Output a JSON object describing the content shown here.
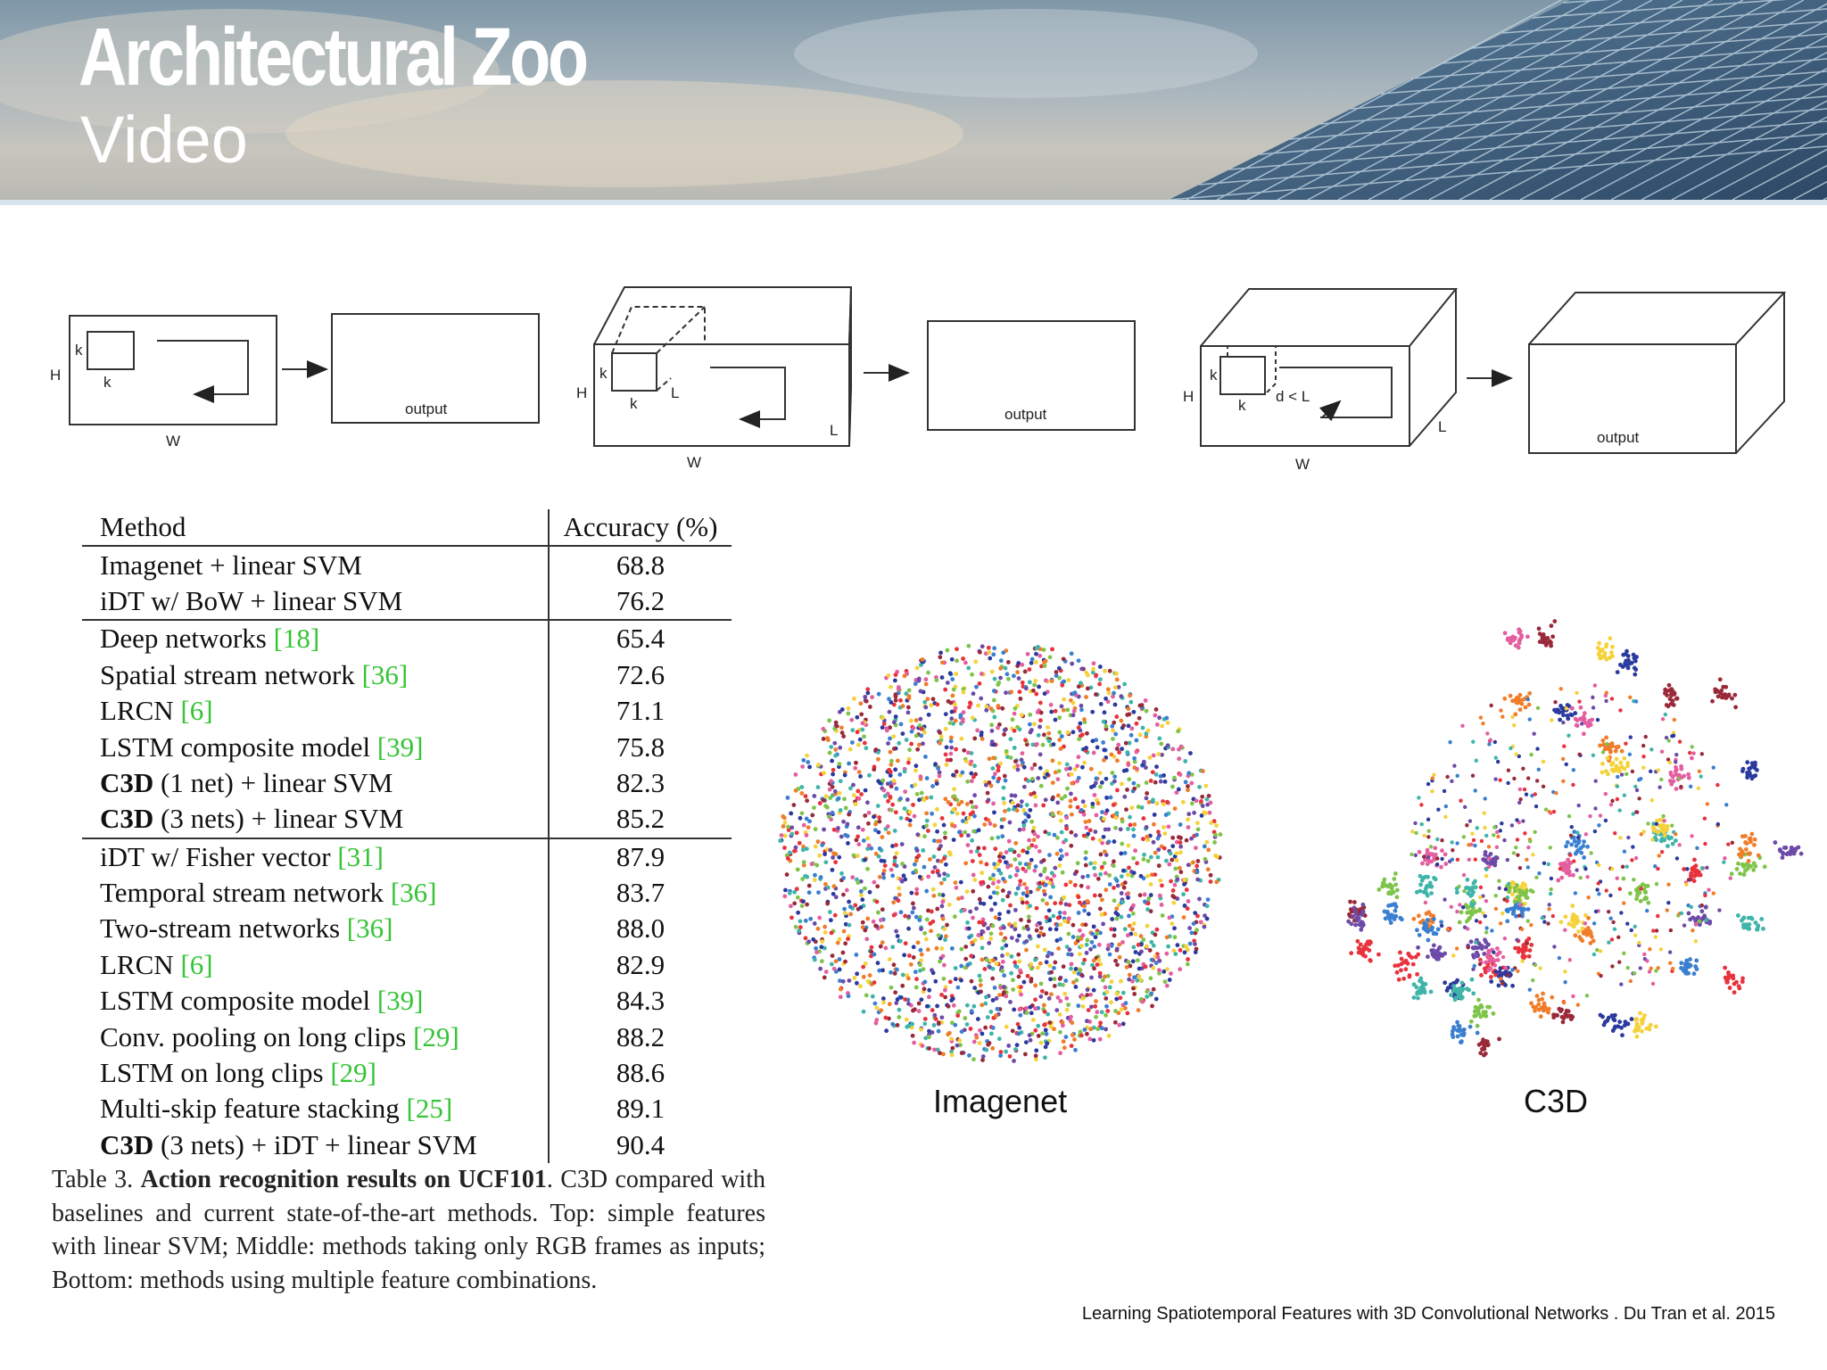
{
  "header": {
    "title": "Architectural Zoo",
    "subtitle": "Video"
  },
  "diagram": {
    "panel1": {
      "h": "H",
      "k_side": "k",
      "k_bottom": "k",
      "w": "W",
      "output": "output"
    },
    "panel2": {
      "h": "H",
      "k_side": "k",
      "k_bottom": "k",
      "l_small": "L",
      "w": "W",
      "l": "L",
      "output": "output"
    },
    "panel3": {
      "h": "H",
      "k_side": "k",
      "k_bottom": "k",
      "d": "d < L",
      "w": "W",
      "l": "L",
      "output": "output"
    }
  },
  "table": {
    "headers": {
      "method": "Method",
      "accuracy": "Accuracy (%)"
    },
    "groups": [
      [
        {
          "name": "Imagenet + linear SVM",
          "acc": "68.8"
        },
        {
          "name": "iDT w/ BoW + linear SVM",
          "acc": "76.2"
        }
      ],
      [
        {
          "name": "Deep networks ",
          "ref": "[18]",
          "acc": "65.4"
        },
        {
          "name": "Spatial stream network ",
          "ref": "[36]",
          "acc": "72.6"
        },
        {
          "name": "LRCN ",
          "ref": "[6]",
          "acc": "71.1"
        },
        {
          "name": "LSTM composite model ",
          "ref": "[39]",
          "acc": "75.8"
        },
        {
          "bold": "C3D",
          "name": " (1 net) + linear SVM",
          "acc": "82.3"
        },
        {
          "bold": "C3D",
          "name": " (3 nets) + linear SVM",
          "acc": "85.2",
          "acc_bold": true
        }
      ],
      [
        {
          "name": "iDT w/ Fisher vector ",
          "ref": "[31]",
          "acc": "87.9"
        },
        {
          "name": "Temporal stream network ",
          "ref": "[36]",
          "acc": "83.7"
        },
        {
          "name": "Two-stream networks ",
          "ref": "[36]",
          "acc": "88.0"
        },
        {
          "name": "LRCN ",
          "ref": "[6]",
          "acc": "82.9"
        },
        {
          "name": "LSTM composite model ",
          "ref": "[39]",
          "acc": "84.3"
        },
        {
          "name": "Conv. pooling on long clips ",
          "ref": "[29]",
          "acc": "88.2"
        },
        {
          "name": "LSTM on long clips ",
          "ref": "[29]",
          "acc": "88.6"
        },
        {
          "name": "Multi-skip feature stacking ",
          "ref": "[25]",
          "acc": "89.1"
        },
        {
          "bold": "C3D",
          "name": " (3 nets) + iDT + linear SVM",
          "acc": "90.4",
          "acc_bold": true
        }
      ]
    ]
  },
  "caption": {
    "label": "Table 3. ",
    "bold": "Action recognition results on UCF101",
    "text": ". C3D compared with baselines and current state-of-the-art methods. Top: simple features with linear SVM; Middle: methods taking only RGB frames as inputs; Bottom: methods using multiple feature combinations."
  },
  "scatter": {
    "left_label": "Imagenet",
    "right_label": "C3D",
    "colors": [
      "#2b3a9e",
      "#e8323c",
      "#f5d23a",
      "#3fb5a9",
      "#f07d2a",
      "#7fc44a",
      "#9a2a3a",
      "#3a7fd0",
      "#e35fa0",
      "#6d4aa8"
    ]
  },
  "citation": "Learning Spatiotemporal Features with 3D Convolutional Networks . Du Tran et al. 2015"
}
